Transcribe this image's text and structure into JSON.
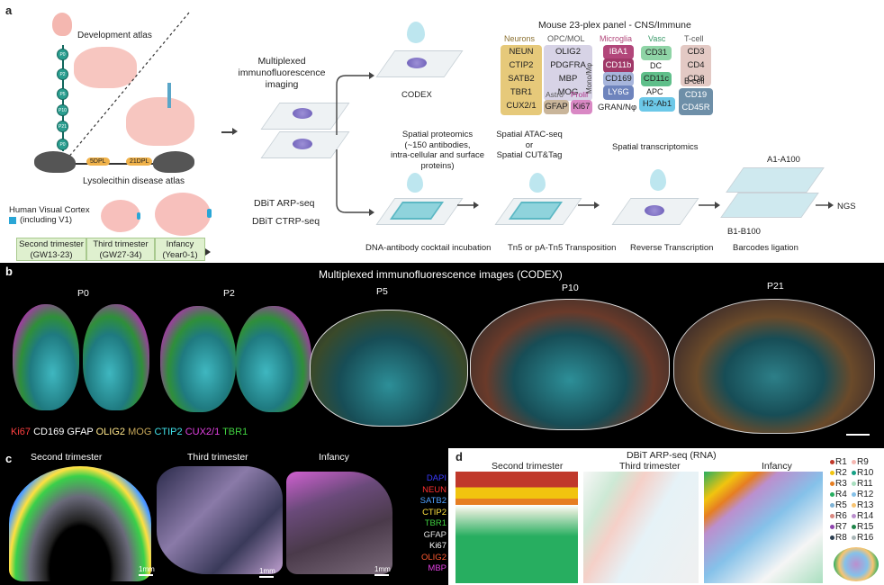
{
  "panel_a": {
    "letter": "a",
    "development_atlas": "Development atlas",
    "lysolecithin_atlas": "Lysolecithin disease atlas",
    "dpl_5": "5DPL",
    "dpl_21": "21DPL",
    "nodes": [
      "P0",
      "P2",
      "P5",
      "P10",
      "P21",
      "P0"
    ],
    "human_cortex": "Human Visual Cortex",
    "including_v1": "(including V1)",
    "timeline": [
      {
        "label": "Second trimester",
        "sub": "(GW13-23)"
      },
      {
        "label": "Third trimester",
        "sub": "(GW27-34)"
      },
      {
        "label": "Infancy",
        "sub": "(Year0-1)"
      }
    ],
    "if_imaging_l1": "Multiplexed",
    "if_imaging_l2": "immunofluorescence",
    "if_imaging_l3": "imaging",
    "codex": "CODEX",
    "dbit_arp": "DBiT ARP-seq",
    "dbit_ctrp": "DBiT CTRP-seq",
    "panel_title": "Mouse 23-plex panel - CNS/Immune",
    "groups": {
      "neurons": {
        "title": "Neurons",
        "markers": [
          "NEUN",
          "CTIP2",
          "SATB2",
          "TBR1",
          "CUX2/1"
        ]
      },
      "opc": {
        "title": "OPC/MOL",
        "markers": [
          "OLIG2",
          "PDGFRA",
          "MBP",
          "MOG"
        ]
      },
      "astro": {
        "title": "Astro",
        "markers": [
          "GFAP"
        ]
      },
      "prolif": {
        "title": "Prolif",
        "markers": [
          "Ki67"
        ]
      },
      "microglia": {
        "title": "Microglia",
        "markers": [
          "IBA1",
          "CD11b"
        ]
      },
      "mono": {
        "title": "Mono/Mφ",
        "markers": [
          "CD169",
          "LY6G"
        ]
      },
      "gran": "GRAN/Nφ",
      "vasc": {
        "title": "Vasc",
        "markers": [
          "CD31"
        ]
      },
      "dc": {
        "title": "DC",
        "markers": [
          "CD11c"
        ]
      },
      "apc": {
        "title": "APC",
        "markers": [
          "H2-Ab1"
        ]
      },
      "tcell": {
        "title": "T-cell",
        "markers": [
          "CD3",
          "CD4",
          "CD8"
        ]
      },
      "bcell": {
        "title": "B-cell",
        "markers": [
          "CD19",
          "CD45R"
        ]
      }
    },
    "steps": {
      "sp_l1": "Spatial proteomics",
      "sp_l2": "(~150 antibodies,",
      "sp_l3": "intra-cellular and surface proteins)",
      "atac_l1": "Spatial ATAC-seq",
      "atac_l2": "or",
      "atac_l3": "Spatial CUT&Tag",
      "st": "Spatial transcriptomics",
      "a1": "A1-A100",
      "b1": "B1-B100",
      "ngs": "NGS",
      "s1": "DNA-antibody cocktail incubation",
      "s2": "Tn5 or pA-Tn5 Transposition",
      "s3": "Reverse Transcription",
      "s4": "Barcodes ligation"
    },
    "colors": {
      "teal": "#2a9d8f",
      "neuron_box": "#e6c97a",
      "opc_box": "#d7d3e6",
      "micro_box": "#b2467a",
      "mono_box": "#7a8fc4",
      "vasc_box": "#8fd4a6",
      "tcell_box": "#e3c9c4",
      "bcell_box": "#6e8fa8",
      "astro_box": "#c9b59a",
      "prolif_box": "#d988c4"
    }
  },
  "panel_b": {
    "letter": "b",
    "title": "Multiplexed immunofluorescence images (CODEX)",
    "ages": [
      "P0",
      "P2",
      "P5",
      "P10",
      "P21"
    ],
    "legend": [
      {
        "text": "Ki67",
        "color": "#ff4040"
      },
      {
        "text": "CD169",
        "color": "#ffffff"
      },
      {
        "text": "GFAP",
        "color": "#ffffff"
      },
      {
        "text": "OLIG2",
        "color": "#ffe68a"
      },
      {
        "text": "MOG",
        "color": "#c8a85a"
      },
      {
        "text": "CTIP2",
        "color": "#40e0e8"
      },
      {
        "text": "CUX2/1",
        "color": "#e040e0"
      },
      {
        "text": "TBR1",
        "color": "#40d040"
      }
    ]
  },
  "panel_c": {
    "letter": "c",
    "titles": [
      "Second trimester",
      "Third trimester",
      "Infancy"
    ],
    "scale": [
      "1mm",
      "1mm",
      "1mm"
    ],
    "legend": [
      {
        "text": "DAPI",
        "color": "#3a3aff"
      },
      {
        "text": "NEUN",
        "color": "#ff3030"
      },
      {
        "text": "SATB2",
        "color": "#4fa0ff"
      },
      {
        "text": "CTIP2",
        "color": "#ffe040"
      },
      {
        "text": "TBR1",
        "color": "#40d040"
      },
      {
        "text": "GFAP",
        "color": "#e0e0e0"
      },
      {
        "text": "Ki67",
        "color": "#ffffff"
      },
      {
        "text": "OLIG2",
        "color": "#ff5a30"
      },
      {
        "text": "MBP",
        "color": "#e040e0"
      }
    ]
  },
  "panel_d": {
    "letter": "d",
    "title": "DBiT ARP-seq (RNA)",
    "titles": [
      "Second trimester",
      "Third trimester",
      "Infancy"
    ],
    "clusters_left": [
      {
        "text": "R1",
        "color": "#c0392b"
      },
      {
        "text": "R2",
        "color": "#f1c40f"
      },
      {
        "text": "R3",
        "color": "#e67e22"
      },
      {
        "text": "R4",
        "color": "#27ae60"
      },
      {
        "text": "R5",
        "color": "#7fb3d5"
      },
      {
        "text": "R6",
        "color": "#d98880"
      },
      {
        "text": "R7",
        "color": "#8e44ad"
      },
      {
        "text": "R8",
        "color": "#2c3e50"
      }
    ],
    "clusters_right": [
      {
        "text": "R9",
        "color": "#f5b7b1"
      },
      {
        "text": "R10",
        "color": "#16a085"
      },
      {
        "text": "R11",
        "color": "#a9dfbf"
      },
      {
        "text": "R12",
        "color": "#85c1e9"
      },
      {
        "text": "R13",
        "color": "#f8c471"
      },
      {
        "text": "R14",
        "color": "#bb8fce"
      },
      {
        "text": "R15",
        "color": "#1e8449"
      },
      {
        "text": "R16",
        "color": "#aab7b8"
      }
    ]
  }
}
